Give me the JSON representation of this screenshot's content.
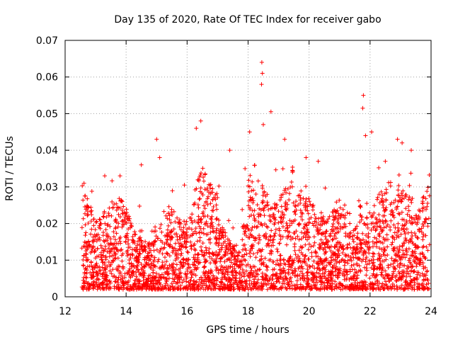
{
  "chart_data": {
    "type": "scatter",
    "title": "Day 135 of 2020, Rate Of TEC Index for receiver gabo",
    "xlabel": "GPS time / hours",
    "ylabel": "ROTI / TECUs",
    "xlim": [
      12,
      24
    ],
    "ylim": [
      0,
      0.07
    ],
    "xticks": [
      12,
      14,
      16,
      18,
      20,
      22,
      24
    ],
    "yticks": [
      0,
      0.01,
      0.02,
      0.03,
      0.04,
      0.05,
      0.06,
      0.07
    ],
    "ytick_labels": [
      "0",
      "0.01",
      "0.02",
      "0.03",
      "0.04",
      "0.05",
      "0.06",
      "0.07"
    ],
    "grid": true,
    "marker": "+",
    "color": "#ff0000",
    "series": [
      {
        "name": "ROTI",
        "x_range": [
          12.55,
          23.95
        ],
        "typical_range": [
          0.002,
          0.025
        ],
        "highlights": [
          {
            "x": 12.62,
            "y": 0.031
          },
          {
            "x": 13.3,
            "y": 0.033
          },
          {
            "x": 13.8,
            "y": 0.033
          },
          {
            "x": 14.5,
            "y": 0.036
          },
          {
            "x": 15.0,
            "y": 0.043
          },
          {
            "x": 15.1,
            "y": 0.038
          },
          {
            "x": 16.3,
            "y": 0.046
          },
          {
            "x": 16.45,
            "y": 0.048
          },
          {
            "x": 17.4,
            "y": 0.04
          },
          {
            "x": 17.9,
            "y": 0.035
          },
          {
            "x": 18.05,
            "y": 0.045
          },
          {
            "x": 18.45,
            "y": 0.064
          },
          {
            "x": 18.47,
            "y": 0.061
          },
          {
            "x": 18.44,
            "y": 0.058
          },
          {
            "x": 18.5,
            "y": 0.047
          },
          {
            "x": 18.75,
            "y": 0.0505
          },
          {
            "x": 19.2,
            "y": 0.043
          },
          {
            "x": 19.9,
            "y": 0.038
          },
          {
            "x": 20.3,
            "y": 0.037
          },
          {
            "x": 21.78,
            "y": 0.055
          },
          {
            "x": 21.76,
            "y": 0.0515
          },
          {
            "x": 21.85,
            "y": 0.044
          },
          {
            "x": 22.05,
            "y": 0.045
          },
          {
            "x": 22.5,
            "y": 0.037
          },
          {
            "x": 22.9,
            "y": 0.043
          },
          {
            "x": 23.05,
            "y": 0.042
          },
          {
            "x": 23.35,
            "y": 0.04
          }
        ]
      }
    ]
  }
}
